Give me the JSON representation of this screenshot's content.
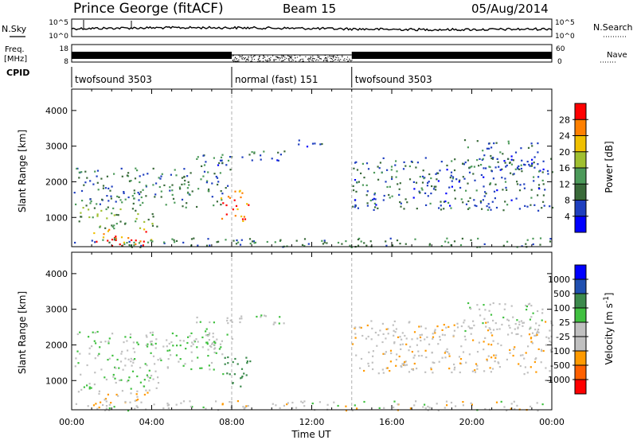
{
  "header": {
    "station": "Prince George (fitACF)",
    "beam": "Beam 15",
    "date": "05/Aug/2014"
  },
  "noise_panel": {
    "left_label": "N.Sky",
    "right_label": "N.Search",
    "left_ticks": [
      "10^5",
      "10^0"
    ],
    "right_ticks": [
      "10^5",
      "10^0"
    ]
  },
  "freq_panel": {
    "left_label_1": "Freq.",
    "left_label_2": "[MHz]",
    "right_label": "Nave",
    "left_ticks": [
      "18",
      "8"
    ],
    "right_ticks": [
      "60",
      "0"
    ]
  },
  "cpid_panel": {
    "label": "CPID",
    "segments": [
      {
        "start_hour": 0,
        "end_hour": 8,
        "label": "twofsound 3503"
      },
      {
        "start_hour": 8,
        "end_hour": 14,
        "label": "normal (fast) 151"
      },
      {
        "start_hour": 14,
        "end_hour": 24,
        "label": "twofsound 3503"
      }
    ]
  },
  "colors": {
    "power_scale": [
      "#0000ff",
      "#1f3fbf",
      "#3a6a3a",
      "#4c9a5a",
      "#a0c030",
      "#f0c000",
      "#ff8000",
      "#ff0000"
    ],
    "velocity_scale": [
      "#ff0000",
      "#ff6000",
      "#ff9a00",
      "#c0c0c0",
      "#c0c0c0",
      "#40c040",
      "#3c8a4c",
      "#2050b0",
      "#0000ff"
    ],
    "boundary_line": "#b0b0b0"
  },
  "chart_data": [
    {
      "type": "heatmap",
      "panel": "power",
      "ylabel": "Slant Range [km]",
      "yticks": [
        "1000",
        "2000",
        "3000",
        "4000"
      ],
      "ylim": [
        180,
        4600
      ],
      "xlim": [
        0,
        24
      ],
      "colorbar": {
        "label": "Power [dB]",
        "ticks": [
          "4",
          "8",
          "12",
          "16",
          "20",
          "24",
          "28"
        ],
        "range": [
          0,
          30
        ]
      },
      "echo_regions": [
        {
          "t0": 0.1,
          "t1": 7.7,
          "r0": 1300,
          "r1": 2400,
          "level": 10
        },
        {
          "t0": 0.3,
          "t1": 4.3,
          "r0": 700,
          "r1": 1300,
          "level": 14
        },
        {
          "t0": 1.0,
          "t1": 4.0,
          "r0": 200,
          "r1": 700,
          "level": 26
        },
        {
          "t0": 6.2,
          "t1": 8.0,
          "r0": 1900,
          "r1": 2800,
          "level": 8
        },
        {
          "t0": 8.0,
          "t1": 9.0,
          "r0": 850,
          "r1": 1800,
          "level": 26
        },
        {
          "t0": 7.4,
          "t1": 7.9,
          "r0": 950,
          "r1": 1700,
          "level": 24
        },
        {
          "t0": 8.2,
          "t1": 11.0,
          "r0": 2600,
          "r1": 2900,
          "level": 8
        },
        {
          "t0": 11.3,
          "t1": 12.5,
          "r0": 3000,
          "r1": 3300,
          "level": 6
        },
        {
          "t0": 14.0,
          "t1": 24.0,
          "r0": 1200,
          "r1": 2700,
          "level": 8
        },
        {
          "t0": 19.5,
          "t1": 23.5,
          "r0": 2300,
          "r1": 3200,
          "level": 8
        },
        {
          "t0": 0.0,
          "t1": 24.0,
          "r0": 180,
          "r1": 450,
          "level": 10
        }
      ]
    },
    {
      "type": "heatmap",
      "panel": "velocity",
      "ylabel": "Slant Range [km]",
      "yticks": [
        "1000",
        "2000",
        "3000",
        "4000"
      ],
      "ylim": [
        180,
        4600
      ],
      "xlim": [
        0,
        24
      ],
      "xlabel": "Time UT",
      "xticks": [
        "00:00",
        "04:00",
        "08:00",
        "12:00",
        "16:00",
        "20:00",
        "00:00"
      ],
      "colorbar": {
        "label": "Velocity [m s-1]",
        "label_main": "Velocity [m s",
        "label_sup": "-1",
        "label_end": "]",
        "ticks": [
          "-1000",
          "-500",
          "-100",
          "-25",
          "25",
          "100",
          "500",
          "1000"
        ],
        "range": [
          -1200,
          1200
        ]
      },
      "echo_regions": [
        {
          "t0": 0.1,
          "t1": 7.7,
          "r0": 1300,
          "r1": 2400,
          "level": 0
        },
        {
          "t0": 0.3,
          "t1": 4.3,
          "r0": 700,
          "r1": 1300,
          "level": 10
        },
        {
          "t0": 1.0,
          "t1": 4.0,
          "r0": 300,
          "r1": 700,
          "level": -80
        },
        {
          "t0": 6.2,
          "t1": 8.0,
          "r0": 1900,
          "r1": 2800,
          "level": 0
        },
        {
          "t0": 8.0,
          "t1": 9.0,
          "r0": 850,
          "r1": 1800,
          "level": 300
        },
        {
          "t0": 7.4,
          "t1": 7.9,
          "r0": 950,
          "r1": 1700,
          "level": 120
        },
        {
          "t0": 8.2,
          "t1": 11.0,
          "r0": 2600,
          "r1": 2900,
          "level": 0
        },
        {
          "t0": 14.0,
          "t1": 24.0,
          "r0": 1200,
          "r1": 2700,
          "level": -60
        },
        {
          "t0": 19.5,
          "t1": 23.5,
          "r0": 2300,
          "r1": 3200,
          "level": 0
        },
        {
          "t0": 0.0,
          "t1": 24.0,
          "r0": 180,
          "r1": 450,
          "level": -40
        }
      ]
    }
  ]
}
